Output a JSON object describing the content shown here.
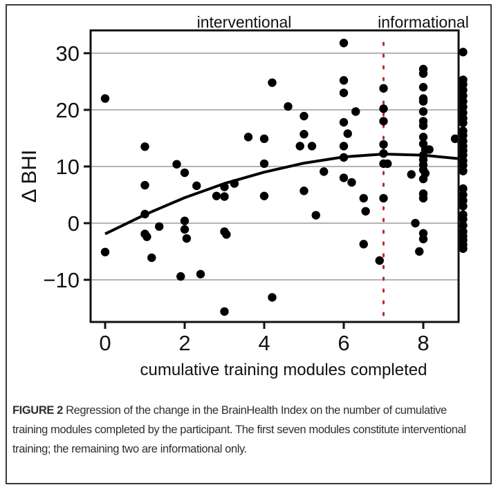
{
  "figure": {
    "label": "FIGURE 2",
    "caption": "Regression of the change in the BrainHealth Index on the number of cumulative training modules completed by the participant. The first seven modules constitute interventional training; the remaining two are informational only."
  },
  "annotations": {
    "left": "interventional",
    "right": "informational",
    "divider_x": 7,
    "divider_color": "#c0282d"
  },
  "chart_data": {
    "type": "scatter",
    "title": "",
    "xlabel": "cumulative training modules completed",
    "ylabel": "Δ BHI",
    "xlim": [
      -0.3,
      9.3
    ],
    "ylim": [
      -17.5,
      34
    ],
    "xticks": [
      0,
      2,
      4,
      6,
      8
    ],
    "yticks": [
      30,
      20,
      10,
      0,
      -10
    ],
    "ytick_labels": [
      "30",
      "20",
      "10",
      "0",
      "−10"
    ],
    "grid": "horizontal",
    "legend": null,
    "regions": [
      {
        "label": "interventional",
        "x_range": [
          0,
          7
        ]
      },
      {
        "label": "informational",
        "x_range": [
          7,
          9
        ]
      }
    ],
    "vertical_line": {
      "x": 7,
      "style": "dotted",
      "color": "#c0282d"
    },
    "points": [
      [
        0,
        22
      ],
      [
        0,
        -5.1
      ],
      [
        1,
        13.5
      ],
      [
        1,
        6.7
      ],
      [
        1,
        1.6
      ],
      [
        1,
        -1.9
      ],
      [
        1.05,
        -2.4
      ],
      [
        1.17,
        -6.1
      ],
      [
        1.36,
        -0.6
      ],
      [
        1.8,
        10.4
      ],
      [
        2.0,
        8.9
      ],
      [
        2.0,
        0.4
      ],
      [
        2.0,
        -1.1
      ],
      [
        2.05,
        -2.7
      ],
      [
        1.9,
        -9.4
      ],
      [
        2.3,
        6.6
      ],
      [
        2.4,
        -9.0
      ],
      [
        2.8,
        4.8
      ],
      [
        3.0,
        6.4
      ],
      [
        3.0,
        4.7
      ],
      [
        3.0,
        -1.5
      ],
      [
        3.05,
        -2.0
      ],
      [
        3.0,
        -15.6
      ],
      [
        3.25,
        7.0
      ],
      [
        3.6,
        15.2
      ],
      [
        4.0,
        14.9
      ],
      [
        4.0,
        10.5
      ],
      [
        4.0,
        4.8
      ],
      [
        4.2,
        24.8
      ],
      [
        4.2,
        -13.1
      ],
      [
        4.6,
        20.6
      ],
      [
        4.9,
        13.6
      ],
      [
        5.0,
        18.9
      ],
      [
        5.0,
        15.7
      ],
      [
        5.0,
        5.7
      ],
      [
        5.2,
        13.6
      ],
      [
        5.3,
        1.4
      ],
      [
        5.5,
        9.1
      ],
      [
        6.0,
        31.8
      ],
      [
        6.0,
        25.2
      ],
      [
        6.0,
        23.0
      ],
      [
        6.0,
        17.8
      ],
      [
        6.0,
        13.6
      ],
      [
        6.1,
        15.8
      ],
      [
        6.0,
        11.6
      ],
      [
        6.0,
        8.0
      ],
      [
        6.2,
        7.2
      ],
      [
        6.3,
        19.7
      ],
      [
        6.5,
        4.4
      ],
      [
        6.55,
        2.1
      ],
      [
        6.5,
        -3.7
      ],
      [
        6.9,
        -6.6
      ],
      [
        7.0,
        23.8
      ],
      [
        7.0,
        20.2
      ],
      [
        7.0,
        18.0
      ],
      [
        7.0,
        13.9
      ],
      [
        7.0,
        12.3
      ],
      [
        7.0,
        10.5
      ],
      [
        7.1,
        10.5
      ],
      [
        7.0,
        4.4
      ],
      [
        7.7,
        8.6
      ],
      [
        7.8,
        0.0
      ],
      [
        7.9,
        -5.0
      ],
      [
        8.0,
        27.2
      ],
      [
        8.0,
        26.4
      ],
      [
        8.0,
        24.0
      ],
      [
        8.0,
        22.0
      ],
      [
        8.0,
        21.5
      ],
      [
        8.0,
        19.7
      ],
      [
        8.0,
        18.0
      ],
      [
        8.0,
        17.2
      ],
      [
        8.0,
        15.2
      ],
      [
        8.0,
        14.0
      ],
      [
        8.05,
        13.0
      ],
      [
        8.0,
        12.0
      ],
      [
        8.0,
        11.2
      ],
      [
        8.0,
        10.3
      ],
      [
        8.0,
        9.4
      ],
      [
        8.05,
        8.8
      ],
      [
        8.0,
        7.8
      ],
      [
        8.0,
        5.2
      ],
      [
        8.0,
        4.4
      ],
      [
        8.0,
        -1.8
      ],
      [
        8.0,
        -2.8
      ],
      [
        8.15,
        13.0
      ],
      [
        8.8,
        14.9
      ],
      [
        9.0,
        30.2
      ],
      [
        9.0,
        25.3
      ],
      [
        9.0,
        24.5
      ],
      [
        9.0,
        23.5
      ],
      [
        9.0,
        22.5
      ],
      [
        9.0,
        21.5
      ],
      [
        9.0,
        20.5
      ],
      [
        9.0,
        19.5
      ],
      [
        9.0,
        18.5
      ],
      [
        9.0,
        17.7
      ],
      [
        9.0,
        16.3
      ],
      [
        9.0,
        15.5
      ],
      [
        9.0,
        14.5
      ],
      [
        9.0,
        13.6
      ],
      [
        9.0,
        12.8
      ],
      [
        9.0,
        12.0
      ],
      [
        9.0,
        11.0
      ],
      [
        9.0,
        10.2
      ],
      [
        9.0,
        9.2
      ],
      [
        9.0,
        6.1
      ],
      [
        9.0,
        5.0
      ],
      [
        9.0,
        4.0
      ],
      [
        9.0,
        3.0
      ],
      [
        9.0,
        1.5
      ],
      [
        9.0,
        0.7
      ],
      [
        9.0,
        -0.4
      ],
      [
        9.0,
        -1.5
      ],
      [
        9.0,
        -2.3
      ],
      [
        9.0,
        -3.0
      ],
      [
        9.0,
        -3.8
      ],
      [
        9.0,
        -4.5
      ]
    ],
    "fit": {
      "type": "quadratic",
      "x": [
        0,
        1,
        2,
        3,
        4,
        5,
        6,
        7,
        8,
        9
      ],
      "y": [
        -1.9,
        1.5,
        4.5,
        7.0,
        9.0,
        10.6,
        11.7,
        12.2,
        12.0,
        11.3
      ]
    }
  }
}
